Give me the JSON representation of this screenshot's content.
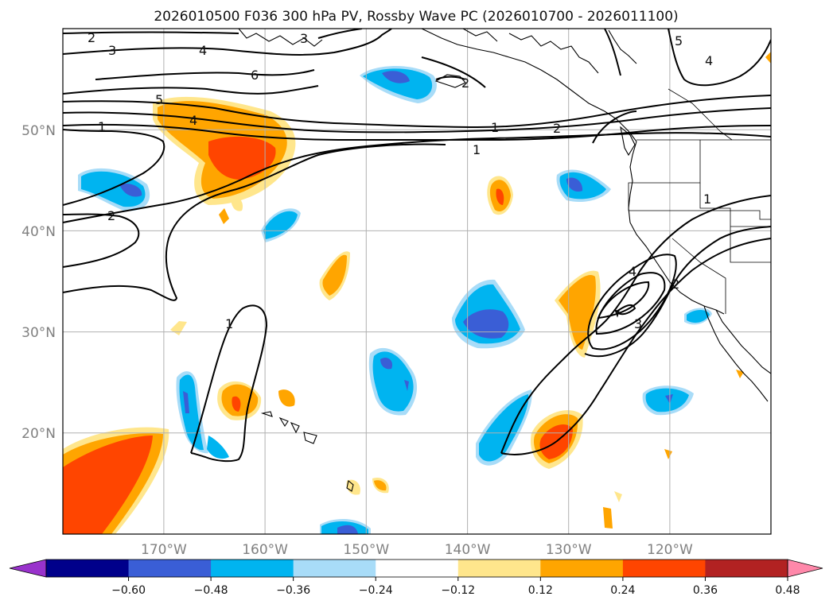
{
  "chart_data": {
    "type": "heatmap",
    "title": "2026010500 F036 300 hPa PV, Rossby Wave PC (2026010700 - 2026011100)",
    "field": "300 hPa PV",
    "contour_field": "Rossby Wave PC",
    "xlabel": "",
    "ylabel": "",
    "lon_range": [
      -180,
      -110
    ],
    "lat_range": [
      10,
      60
    ],
    "lon_ticks": [
      -170,
      -160,
      -150,
      -140,
      -130,
      -120
    ],
    "lon_tick_labels": [
      "170°W",
      "160°W",
      "150°W",
      "140°W",
      "130°W",
      "120°W"
    ],
    "lat_ticks": [
      20,
      30,
      40,
      50
    ],
    "lat_tick_labels": [
      "20°N",
      "30°N",
      "40°N",
      "50°N"
    ],
    "grid": true,
    "colorbar": {
      "levels": [
        -0.6,
        -0.48,
        -0.36,
        -0.24,
        -0.12,
        0.12,
        0.24,
        0.36,
        0.48,
        0.6
      ],
      "tick_labels": [
        "−0.60",
        "−0.48",
        "−0.36",
        "−0.24",
        "−0.12",
        "0.12",
        "0.24",
        "0.36",
        "0.48",
        "0.60"
      ],
      "colors": [
        "#9932cc",
        "#00008b",
        "#3a5ed6",
        "#00b4f0",
        "#a8dcf8",
        "#ffffff",
        "#ffe68c",
        "#ffa500",
        "#ff4500",
        "#b22222",
        "#ff88aa"
      ],
      "extend": "both"
    },
    "contour_labels": [
      "2",
      "3",
      "4",
      "5",
      "6",
      "1",
      "3",
      "2",
      "1",
      "2",
      "1",
      "4",
      "5",
      "4",
      "1",
      "4",
      "2",
      "3",
      "1",
      "2"
    ],
    "anomaly_features": [
      {
        "name": "pos-gulf-of-alaska",
        "lon": -163,
        "lat": 48.5,
        "value": 0.4
      },
      {
        "name": "pos-southwest-corner",
        "lon": -176,
        "lat": 14,
        "value": 0.42
      },
      {
        "name": "pos-west-of-california",
        "lon": -131,
        "lat": 33,
        "value": 0.3
      },
      {
        "name": "pos-hawaii-west",
        "lon": -162,
        "lat": 23,
        "value": 0.3
      },
      {
        "name": "pos-baja-southwest",
        "lon": -130,
        "lat": 18,
        "value": 0.4
      },
      {
        "name": "pos-central-north",
        "lon": -137,
        "lat": 43,
        "value": 0.3
      },
      {
        "name": "pos-central-small",
        "lon": -151,
        "lat": 35.5,
        "value": 0.25
      },
      {
        "name": "neg-north-pacific-nw",
        "lon": -172.5,
        "lat": 45,
        "value": -0.36
      },
      {
        "name": "neg-central-pacific",
        "lon": -139,
        "lat": 31,
        "value": -0.4
      },
      {
        "name": "neg-hawaii-east",
        "lon": -146.5,
        "lat": 25,
        "value": -0.3
      },
      {
        "name": "neg-offshore-oregon",
        "lon": -130.5,
        "lat": 44.5,
        "value": -0.3
      },
      {
        "name": "neg-gulf-alaska-north",
        "lon": -151,
        "lat": 55,
        "value": -0.3
      },
      {
        "name": "neg-mexico-west",
        "lon": -120,
        "lat": 23,
        "value": -0.3
      },
      {
        "name": "neg-south-central",
        "lon": -149,
        "lat": 10.5,
        "value": -0.3
      }
    ]
  }
}
